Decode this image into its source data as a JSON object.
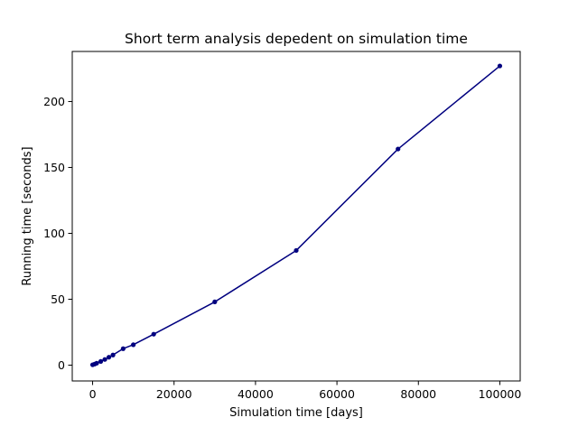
{
  "chart_data": {
    "type": "line",
    "title": "Short term analysis depedent on simulation time",
    "xlabel": "Simulation time [days]",
    "ylabel": "Running time [seconds]",
    "xlim": [
      -5000,
      105000
    ],
    "ylim": [
      -12,
      238
    ],
    "xticks": [
      0,
      20000,
      40000,
      60000,
      80000,
      100000
    ],
    "yticks": [
      0,
      50,
      100,
      150,
      200
    ],
    "grid": false,
    "series": [
      {
        "color": "#00007f",
        "marker": "circle",
        "x": [
          0,
          500,
          1000,
          2000,
          3000,
          4000,
          5000,
          7500,
          10000,
          15000,
          30000,
          50000,
          75000,
          100000
        ],
        "y": [
          0.3,
          0.8,
          1.5,
          2.8,
          4.3,
          6,
          7.7,
          12.5,
          15.5,
          23.5,
          48,
          87,
          164,
          227
        ]
      }
    ]
  }
}
